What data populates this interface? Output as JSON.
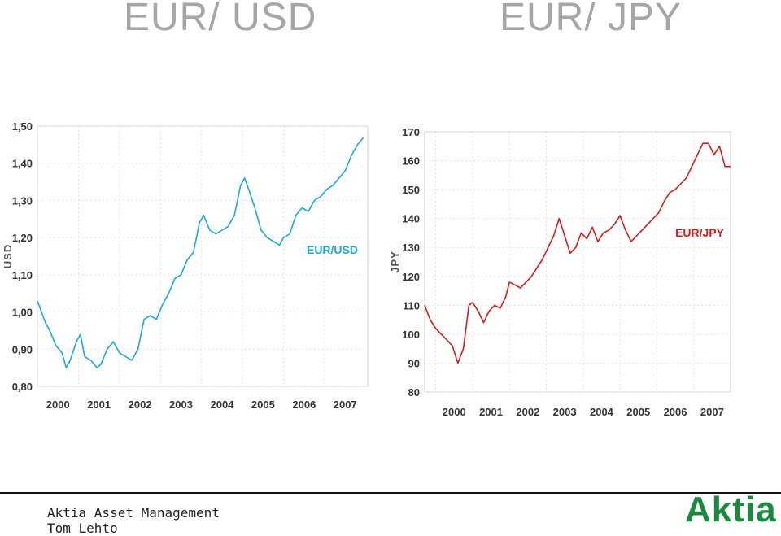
{
  "slide": {
    "title_left": "EUR/ USD",
    "title_right": "EUR/ JPY",
    "footer_company": "Aktia Asset Management",
    "footer_name": "Tom Lehto",
    "logo_text": "Aktia",
    "logo_color": "#1a8a3c"
  },
  "chart_data": [
    {
      "type": "line",
      "title": "",
      "series_label": "EUR/USD",
      "ylabel": "USD",
      "xlabel": "",
      "color": "#1aaad6",
      "ylim": [
        0.8,
        1.5
      ],
      "xlim": [
        2000.0,
        2008.05
      ],
      "y_ticks": [
        "1,50",
        "1,40",
        "1,30",
        "1,20",
        "1,10",
        "1,00",
        "0,90",
        "0,80"
      ],
      "x_ticks": [
        "2000",
        "2001",
        "2002",
        "2003",
        "2004",
        "2005",
        "2006",
        "2007"
      ],
      "grid": true,
      "x": [
        2000.0,
        2000.1,
        2000.2,
        2000.3,
        2000.45,
        2000.6,
        2000.7,
        2000.8,
        2000.95,
        2001.05,
        2001.15,
        2001.3,
        2001.45,
        2001.55,
        2001.7,
        2001.85,
        2002.0,
        2002.15,
        2002.3,
        2002.45,
        2002.6,
        2002.75,
        2002.9,
        2003.05,
        2003.2,
        2003.35,
        2003.5,
        2003.65,
        2003.8,
        2003.95,
        2004.05,
        2004.2,
        2004.35,
        2004.5,
        2004.65,
        2004.8,
        2004.95,
        2005.05,
        2005.15,
        2005.3,
        2005.45,
        2005.6,
        2005.75,
        2005.9,
        2006.0,
        2006.15,
        2006.3,
        2006.45,
        2006.6,
        2006.75,
        2006.9,
        2007.05,
        2007.2,
        2007.35,
        2007.5,
        2007.65,
        2007.8,
        2007.95
      ],
      "y": [
        1.03,
        1.0,
        0.97,
        0.95,
        0.91,
        0.89,
        0.85,
        0.87,
        0.92,
        0.94,
        0.88,
        0.87,
        0.85,
        0.86,
        0.9,
        0.92,
        0.89,
        0.88,
        0.87,
        0.9,
        0.98,
        0.99,
        0.98,
        1.02,
        1.05,
        1.09,
        1.1,
        1.14,
        1.16,
        1.24,
        1.26,
        1.22,
        1.21,
        1.22,
        1.23,
        1.26,
        1.34,
        1.36,
        1.33,
        1.28,
        1.22,
        1.2,
        1.19,
        1.18,
        1.2,
        1.21,
        1.26,
        1.28,
        1.27,
        1.3,
        1.31,
        1.33,
        1.34,
        1.36,
        1.38,
        1.42,
        1.45,
        1.47
      ]
    },
    {
      "type": "line",
      "title": "",
      "series_label": "EUR/JPY",
      "ylabel": "JPY",
      "xlabel": "",
      "color": "#d61a1a",
      "ylim": [
        80,
        170
      ],
      "xlim": [
        1999.7,
        2008.0
      ],
      "y_ticks": [
        "170",
        "160",
        "150",
        "140",
        "130",
        "120",
        "110",
        "100",
        "90",
        "80"
      ],
      "x_ticks": [
        "2000",
        "2001",
        "2002",
        "2003",
        "2004",
        "2005",
        "2006",
        "2007"
      ],
      "grid": true,
      "x": [
        1999.7,
        1999.85,
        2000.0,
        2000.15,
        2000.3,
        2000.45,
        2000.6,
        2000.75,
        2000.9,
        2001.0,
        2001.15,
        2001.3,
        2001.45,
        2001.6,
        2001.75,
        2001.9,
        2002.0,
        2002.15,
        2002.3,
        2002.45,
        2002.6,
        2002.75,
        2002.9,
        2003.05,
        2003.2,
        2003.35,
        2003.5,
        2003.65,
        2003.8,
        2003.95,
        2004.1,
        2004.25,
        2004.4,
        2004.55,
        2004.7,
        2004.85,
        2005.0,
        2005.15,
        2005.3,
        2005.45,
        2005.6,
        2005.75,
        2005.9,
        2006.05,
        2006.2,
        2006.35,
        2006.5,
        2006.65,
        2006.8,
        2006.95,
        2007.1,
        2007.25,
        2007.4,
        2007.55,
        2007.7,
        2007.85,
        2008.0
      ],
      "y": [
        110,
        105,
        102,
        100,
        98,
        96,
        90,
        95,
        110,
        111,
        108,
        104,
        108,
        110,
        109,
        113,
        118,
        117,
        116,
        118,
        120,
        123,
        126,
        130,
        134,
        140,
        134,
        128,
        130,
        135,
        133,
        137,
        132,
        135,
        136,
        138,
        141,
        136,
        132,
        134,
        136,
        138,
        140,
        142,
        146,
        149,
        150,
        152,
        154,
        158,
        162,
        166,
        166,
        162,
        165,
        158,
        158
      ]
    }
  ]
}
